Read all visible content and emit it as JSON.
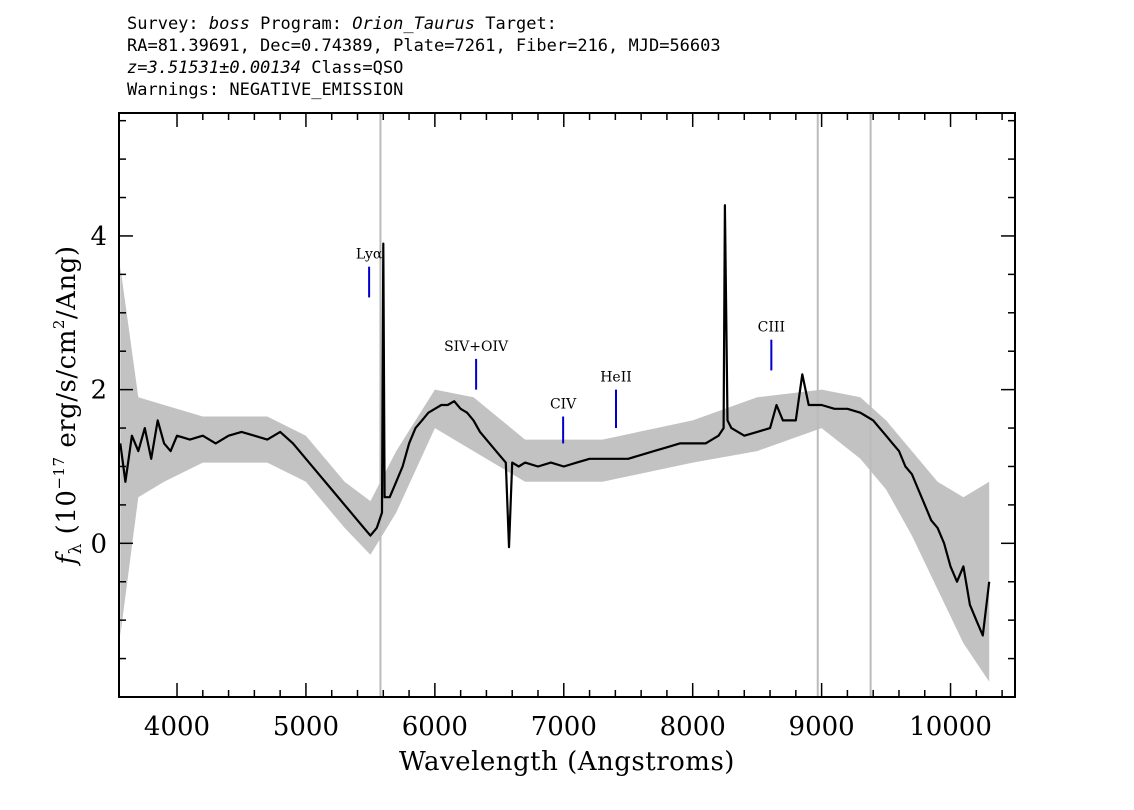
{
  "header": {
    "line1": {
      "survey_label": "Survey: ",
      "survey": "boss",
      "program_label": " Program: ",
      "program": "Orion_Taurus",
      "target_label": " Target:"
    },
    "line2": "RA=81.39691, Dec=0.74389, Plate=7261, Fiber=216, MJD=56603",
    "line3": {
      "z": "z=3.51531±0.00134",
      "class": " Class=QSO"
    },
    "line4": "Warnings: NEGATIVE_EMISSION"
  },
  "colors": {
    "flux": "#000000",
    "error": "#bbbbbb",
    "line_marker": "#0000cc",
    "sky_line": "#bbbbbb"
  },
  "chart_data": {
    "type": "line",
    "xlabel": "Wavelength (Angstroms)",
    "ylabel_parts": {
      "f": "f",
      "sub": "λ",
      "open": " (10",
      "exp1": "−17",
      "mid": " erg/s/cm",
      "exp2": "2",
      "close": "/Ang)"
    },
    "xlim": [
      3550,
      10500
    ],
    "ylim": [
      -2.0,
      5.6
    ],
    "x_ticks": [
      4000,
      5000,
      6000,
      7000,
      8000,
      9000,
      10000
    ],
    "y_ticks": [
      0,
      2,
      4
    ],
    "grid": false,
    "series": [
      {
        "role": "flux",
        "x": [
          3560,
          3600,
          3650,
          3700,
          3750,
          3800,
          3850,
          3900,
          3950,
          4000,
          4100,
          4200,
          4300,
          4400,
          4500,
          4600,
          4700,
          4800,
          4900,
          5000,
          5100,
          5200,
          5300,
          5400,
          5450,
          5500,
          5550,
          5590,
          5600,
          5610,
          5650,
          5700,
          5750,
          5800,
          5850,
          5900,
          5950,
          6000,
          6050,
          6100,
          6150,
          6200,
          6250,
          6300,
          6350,
          6400,
          6450,
          6500,
          6550,
          6575,
          6600,
          6650,
          6700,
          6800,
          6900,
          7000,
          7100,
          7200,
          7300,
          7400,
          7500,
          7600,
          7700,
          7800,
          7900,
          8000,
          8100,
          8200,
          8240,
          8250,
          8270,
          8300,
          8400,
          8500,
          8600,
          8650,
          8700,
          8800,
          8850,
          8900,
          9000,
          9100,
          9200,
          9300,
          9350,
          9400,
          9450,
          9500,
          9550,
          9600,
          9650,
          9700,
          9750,
          9800,
          9850,
          9900,
          9950,
          10000,
          10050,
          10100,
          10150,
          10200,
          10250,
          10300
        ],
        "y": [
          1.3,
          0.8,
          1.4,
          1.2,
          1.5,
          1.1,
          1.6,
          1.3,
          1.2,
          1.4,
          1.35,
          1.4,
          1.3,
          1.4,
          1.45,
          1.4,
          1.35,
          1.45,
          1.3,
          1.1,
          0.9,
          0.7,
          0.5,
          0.3,
          0.2,
          0.1,
          0.2,
          0.4,
          3.9,
          0.6,
          0.6,
          0.8,
          1.0,
          1.3,
          1.5,
          1.6,
          1.7,
          1.75,
          1.8,
          1.8,
          1.85,
          1.75,
          1.7,
          1.6,
          1.45,
          1.35,
          1.25,
          1.15,
          1.05,
          -0.05,
          1.05,
          1.0,
          1.05,
          1.0,
          1.05,
          1.0,
          1.05,
          1.1,
          1.1,
          1.1,
          1.1,
          1.15,
          1.2,
          1.25,
          1.3,
          1.3,
          1.3,
          1.4,
          1.5,
          4.4,
          1.6,
          1.5,
          1.4,
          1.45,
          1.5,
          1.8,
          1.6,
          1.6,
          2.2,
          1.8,
          1.8,
          1.75,
          1.75,
          1.7,
          1.65,
          1.6,
          1.5,
          1.4,
          1.3,
          1.2,
          1.0,
          0.9,
          0.7,
          0.5,
          0.3,
          0.2,
          0.0,
          -0.3,
          -0.5,
          -0.3,
          -0.8,
          -1.0,
          -1.2,
          -0.5
        ]
      },
      {
        "role": "error_envelope",
        "x": [
          3560,
          3700,
          3900,
          4200,
          4700,
          5000,
          5300,
          5500,
          5700,
          6000,
          6300,
          6700,
          7300,
          8000,
          8500,
          9000,
          9300,
          9500,
          9700,
          9900,
          10100,
          10300
        ],
        "y_upper": [
          3.6,
          1.9,
          1.8,
          1.65,
          1.65,
          1.4,
          0.8,
          0.55,
          1.2,
          2.0,
          1.9,
          1.35,
          1.35,
          1.6,
          1.9,
          2.0,
          1.9,
          1.6,
          1.2,
          0.8,
          0.6,
          0.8
        ],
        "y_lower": [
          -1.2,
          0.6,
          0.8,
          1.05,
          1.05,
          0.8,
          0.2,
          -0.15,
          0.4,
          1.5,
          1.2,
          0.8,
          0.8,
          1.05,
          1.2,
          1.5,
          1.1,
          0.7,
          0.1,
          -0.6,
          -1.3,
          -1.8
        ]
      }
    ],
    "sky_lines_x": [
      5578,
      8970,
      9380
    ],
    "emission_lines": [
      {
        "label": "Lyα",
        "x": 5490,
        "y_low": 3.2,
        "y_high": 3.6
      },
      {
        "label": "SIV+OIV",
        "x": 6320,
        "y_low": 2.0,
        "y_high": 2.4
      },
      {
        "label": "CIV",
        "x": 6995,
        "y_low": 1.3,
        "y_high": 1.65
      },
      {
        "label": "HeII",
        "x": 7405,
        "y_low": 1.5,
        "y_high": 2.0
      },
      {
        "label": "CIII",
        "x": 8610,
        "y_low": 2.25,
        "y_high": 2.65
      }
    ]
  }
}
